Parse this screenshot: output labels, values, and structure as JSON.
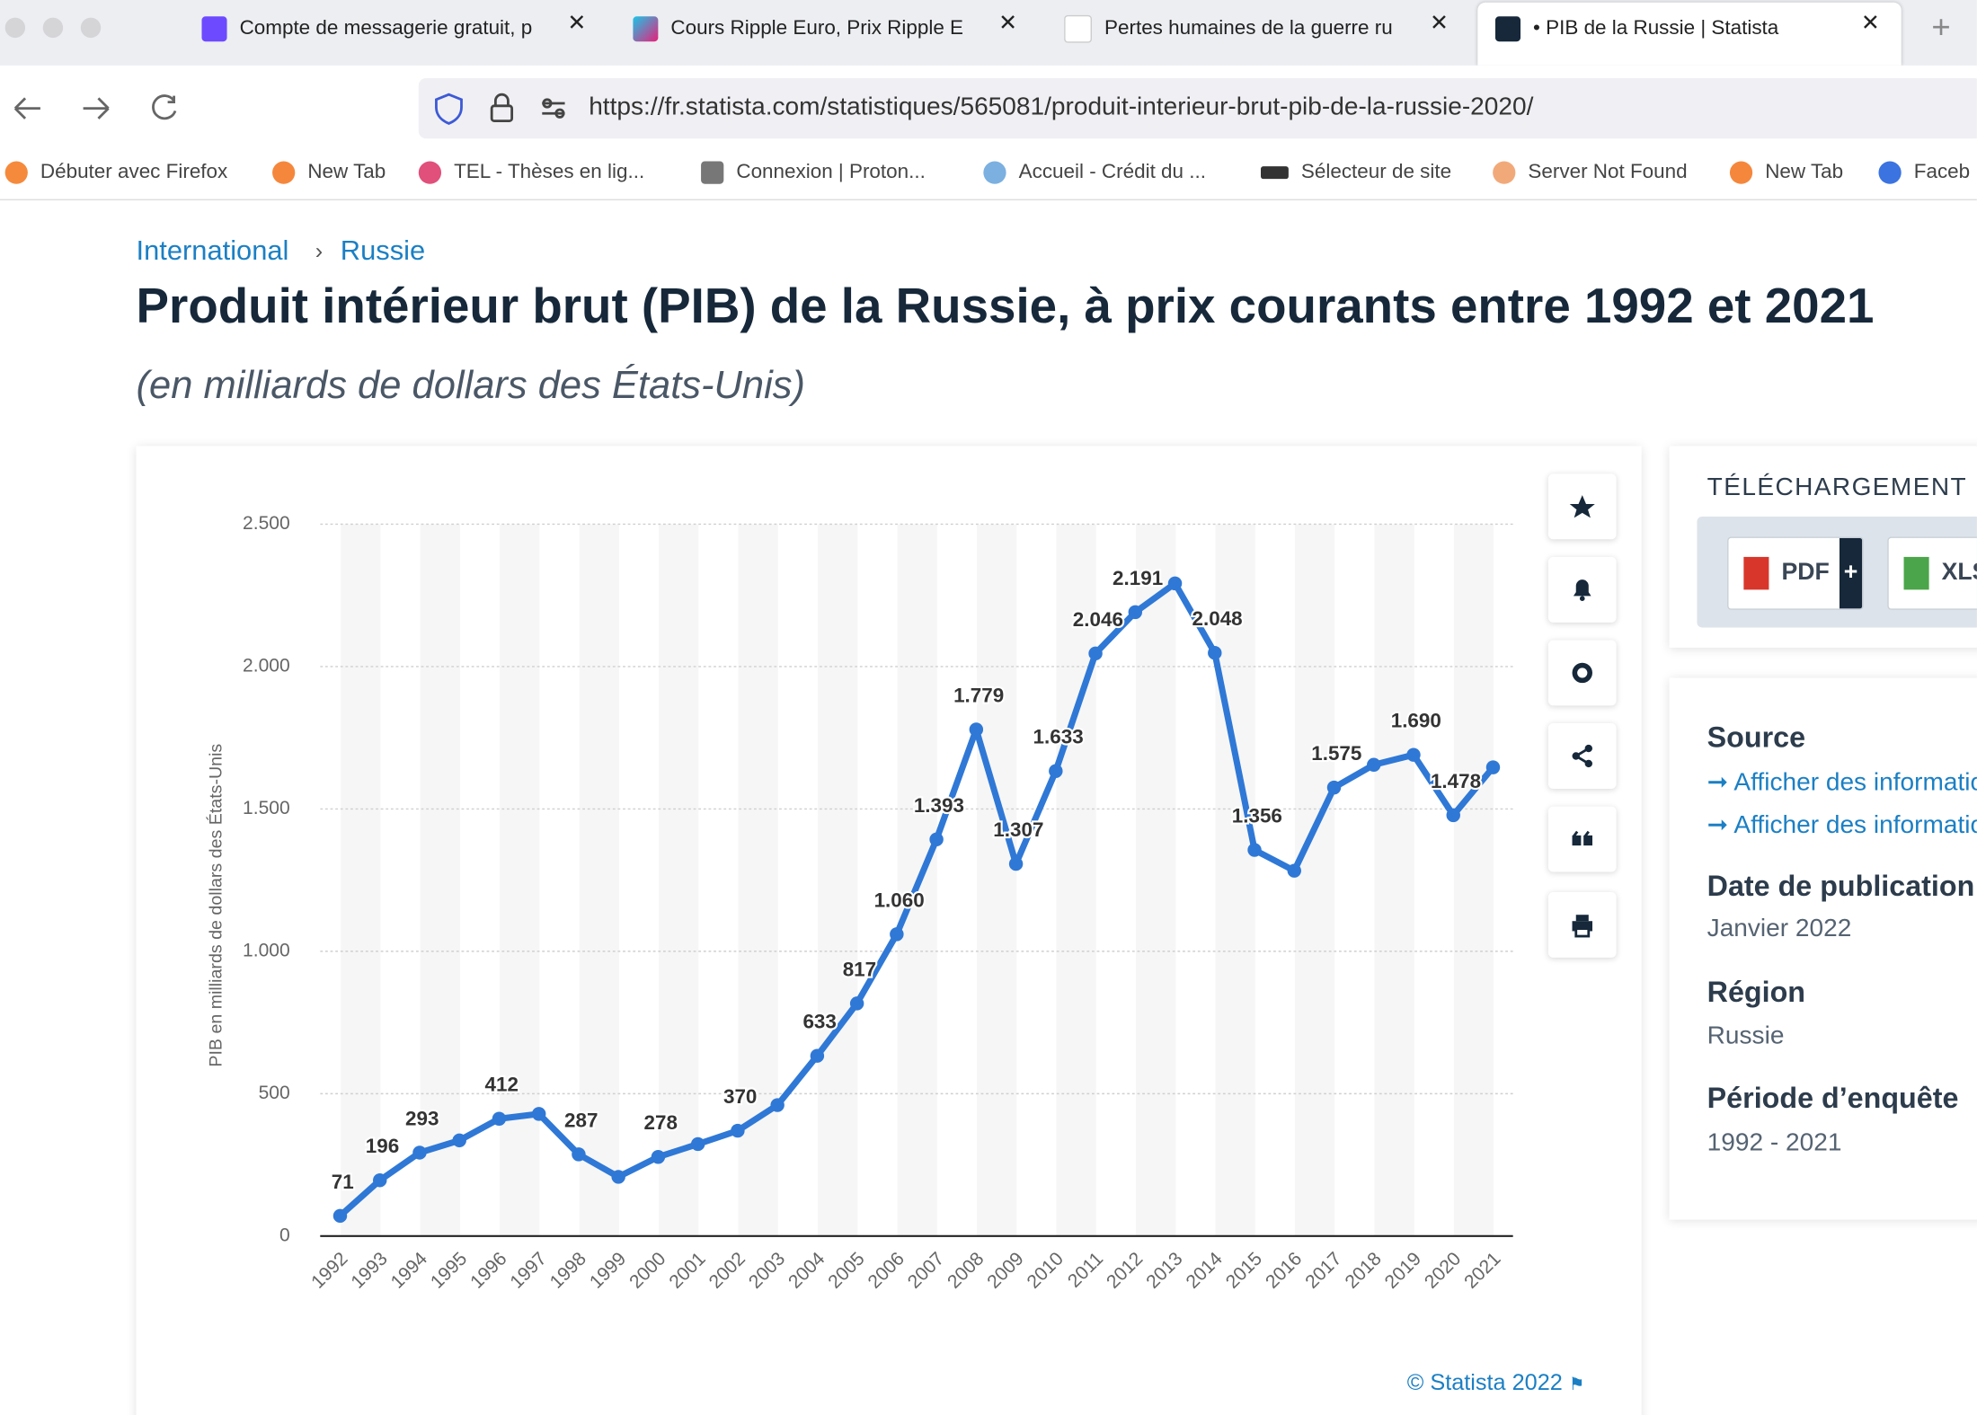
{
  "browser": {
    "tabs": [
      "Compte de messagerie gratuit, p",
      "Cours Ripple Euro, Prix Ripple E",
      "Pertes humaines de la guerre ru",
      "• PIB de la Russie | Statista"
    ],
    "url": "https://fr.statista.com/statistiques/565081/produit-interieur-brut-pib-de-la-russie-2020/",
    "bookmarks": [
      "Débuter avec Firefox",
      "New Tab",
      "TEL - Thèses en lig...",
      "Connexion | Proton...",
      "Accueil - Crédit du ...",
      "Sélecteur de site",
      "Server Not Found",
      "New Tab",
      "Faceb"
    ]
  },
  "page": {
    "breadcrumb": [
      "International",
      "Russie"
    ],
    "title": "Produit intérieur brut (PIB) de la Russie, à prix courants entre 1992 et 2021",
    "subtitle": "(en milliards de dollars des États-Unis)",
    "copyright": "© Statista 2022",
    "download": {
      "heading": "TÉLÉCHARGEMENT",
      "buttons": [
        "PDF",
        "XLS"
      ]
    },
    "info": {
      "source_heading": "Source",
      "source_links": [
        "Afficher des informations",
        "Afficher des informations"
      ],
      "publication_heading": "Date de publication",
      "publication": "Janvier 2022",
      "region_heading": "Région",
      "region": "Russie",
      "period_heading": "Période d’enquête",
      "period": "1992 - 2021"
    }
  },
  "chart_data": {
    "type": "line",
    "y_axis_label": "PIB en milliards de dollars des États-Unis",
    "categories": [
      "1992",
      "1993",
      "1994",
      "1995",
      "1996",
      "1997",
      "1998",
      "1999",
      "2000",
      "2001",
      "2002",
      "2003",
      "2004",
      "2005",
      "2006",
      "2007",
      "2008",
      "2009",
      "2010",
      "2011",
      "2012",
      "2013",
      "2014",
      "2015",
      "2016",
      "2017",
      "2018",
      "2019",
      "2020",
      "2021"
    ],
    "values": [
      71,
      196,
      293,
      336,
      412,
      429,
      287,
      208,
      278,
      323,
      370,
      460,
      633,
      817,
      1060,
      1393,
      1779,
      1307,
      1633,
      2046,
      2191,
      2292,
      2048,
      1356,
      1283,
      1575,
      1655,
      1690,
      1478,
      1646
    ],
    "value_labels": [
      "71",
      "196",
      "293",
      null,
      "412",
      null,
      "287",
      null,
      "278",
      null,
      "370",
      null,
      "633",
      "817",
      "1.060",
      "1.393",
      "1.779",
      "1.307",
      "1.633",
      "2.046",
      "2.191",
      null,
      "2.048",
      "1.356",
      null,
      "1.575",
      null,
      "1.690",
      "1.478",
      null
    ],
    "color": "#2f78d6",
    "ylim": [
      0,
      2500
    ],
    "yticks": [
      0,
      500,
      {
        "value": 1000,
        "label": "1.000"
      },
      {
        "value": 1500,
        "label": "1.500"
      },
      {
        "value": 2000,
        "label": "2.000"
      },
      {
        "value": 2500,
        "label": "2.500"
      }
    ],
    "grid": true
  }
}
